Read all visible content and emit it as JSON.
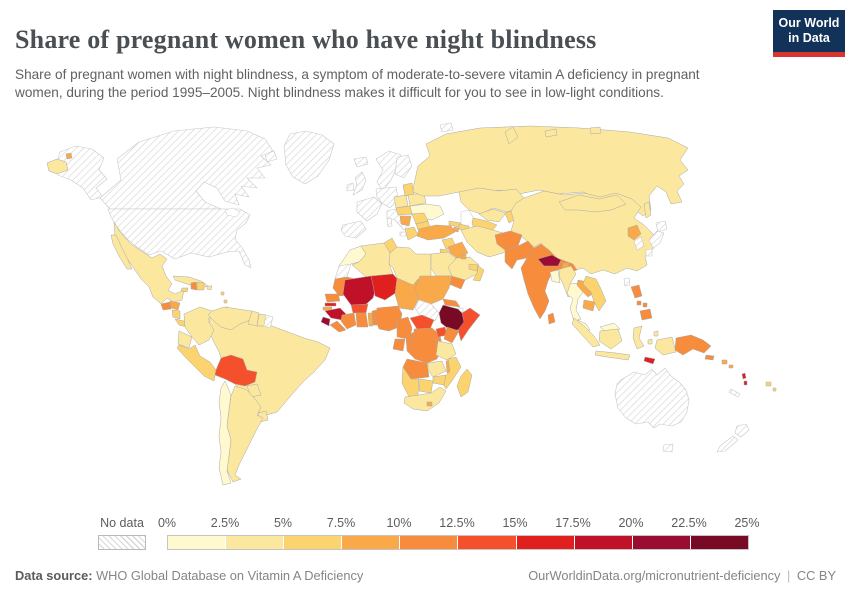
{
  "header": {
    "title": "Share of pregnant women who have night blindness",
    "subtitle": "Share of pregnant women with night blindness, a symptom of moderate-to-severe vitamin A deficiency in pregnant women, during the period 1995–2005. Night blindness makes it difficult for you to see in low-light conditions."
  },
  "logo": {
    "line1": "Our World",
    "line2": "in Data",
    "bg": "#12325a",
    "accent": "#d8352e"
  },
  "legend": {
    "no_data_label": "No data",
    "ticks": [
      "0%",
      "2.5%",
      "5%",
      "7.5%",
      "10%",
      "12.5%",
      "15%",
      "17.5%",
      "20%",
      "22.5%",
      "25%"
    ]
  },
  "palette": {
    "bins": [
      "#FEF9CE",
      "#FBE79E",
      "#FBD470",
      "#F9A94A",
      "#F78C3C",
      "#F3502B",
      "#E01F1F",
      "#C11129",
      "#9A0C31",
      "#780A26"
    ],
    "no_data": "hatch"
  },
  "footer": {
    "source_label": "Data source:",
    "source": "WHO Global Database on Vitamin A Deficiency",
    "right_link": "OurWorldinData.org/micronutrient-deficiency",
    "separator": "|",
    "license": "CC BY"
  },
  "chart_data": {
    "type": "heatmap",
    "title": "Share of pregnant women who have night blindness",
    "unit": "%",
    "period": "1995–2005",
    "legend_bins": [
      {
        "range": "0–2.5%",
        "color": "#FEF9CE"
      },
      {
        "range": "2.5–5%",
        "color": "#FBE79E"
      },
      {
        "range": "5–7.5%",
        "color": "#FBD470"
      },
      {
        "range": "7.5–10%",
        "color": "#F9A94A"
      },
      {
        "range": "10–12.5%",
        "color": "#F78C3C"
      },
      {
        "range": "12.5–15%",
        "color": "#F3502B"
      },
      {
        "range": "15–17.5%",
        "color": "#E01F1F"
      },
      {
        "range": "17.5–20%",
        "color": "#C11129"
      },
      {
        "range": "20–22.5%",
        "color": "#9A0C31"
      },
      {
        "range": "22.5–25%",
        "color": "#780A26"
      }
    ],
    "no_data_regions": [
      "United States",
      "Canada",
      "Greenland",
      "Iceland",
      "United Kingdom",
      "Ireland",
      "Scandinavia",
      "Finland",
      "Denmark",
      "France",
      "Spain",
      "Portugal",
      "Germany",
      "Italy",
      "Japan",
      "South Korea",
      "Taiwan",
      "Australia",
      "New Zealand",
      "New Caledonia",
      "Western Sahara",
      "South Sudan",
      "Djibouti",
      "French Guiana"
    ],
    "countries_by_bin": {
      "0–2.5%": [
        "Ukraine",
        "Morocco",
        "Bangladesh",
        "Thailand",
        "Malaysia",
        "Chile"
      ],
      "2.5–5%": [
        "Russia",
        "China",
        "Mongolia",
        "Kazakhstan",
        "Uzbekistan",
        "Iran",
        "Saudi Arabia",
        "Egypt",
        "Libya",
        "Algeria",
        "Mexico",
        "Cuba",
        "Brazil",
        "Colombia",
        "Venezuela",
        "Guyana",
        "Suriname",
        "Ecuador",
        "Paraguay",
        "Uruguay",
        "Argentina",
        "Tanzania",
        "Zambia",
        "South Africa",
        "Poland",
        "Belarus",
        "Myanmar",
        "Indonesia"
      ],
      "5–7.5%": [
        "Peru",
        "Greece",
        "Baltic states",
        "Romania",
        "Hungary",
        "Bulgaria",
        "Georgia",
        "Azerbaijan",
        "Turkmenistan",
        "Kyrgyzstan",
        "Syria",
        "Jordan",
        "Oman",
        "UAE",
        "Tunisia",
        "Mozambique",
        "Zimbabwe",
        "Botswana",
        "Namibia",
        "Madagascar",
        "Vietnam",
        "Nicaragua",
        "Costa Rica",
        "Panama",
        "Jamaica",
        "Dominican Republic",
        "Fiji"
      ],
      "7.5–10%": [
        "Turkey",
        "Iraq",
        "Armenia",
        "Balkans",
        "Chad",
        "Sudan",
        "Togo",
        "Malawi",
        "Lesotho",
        "North Korea",
        "Laos",
        "Cambodia",
        "Bhutan",
        "Honduras",
        "Solomon Islands"
      ],
      "10–12.5%": [
        "India",
        "Pakistan",
        "Afghanistan",
        "Yemen",
        "Mauritania",
        "Senegal",
        "Liberia",
        "Côte d'Ivoire",
        "Ghana",
        "Benin",
        "Nigeria",
        "Cameroon",
        "Gabon",
        "Congo",
        "DR Congo",
        "Kenya",
        "Eritrea",
        "Angola",
        "Sri Lanka",
        "Philippines",
        "Papua New Guinea",
        "Guatemala",
        "Haiti"
      ],
      "12.5–15%": [
        "Bolivia",
        "Burkina Faso",
        "Central African Republic",
        "Uganda",
        "Somalia"
      ],
      "15–17.5%": [
        "Niger",
        "Gambia",
        "Timor-Leste",
        "Vanuatu"
      ],
      "17.5–20%": [
        "Mali",
        "Guinea"
      ],
      "20–22.5%": [
        "Sierra Leone",
        "Nepal"
      ],
      "22.5–25%": [
        "Ethiopia"
      ]
    }
  },
  "map": {
    "regions": {
      "greenland": "nd",
      "arctic-canada": "nd",
      "alaska": "nd",
      "canada": "nd",
      "usa": "nd",
      "chukotka": 2,
      "chukotka-dot": 4,
      "mexico": 2,
      "baja": 2,
      "guatemala": 5,
      "honduras": 4,
      "nicaragua": 3,
      "costa-panama": 3,
      "cuba": 2,
      "jamaica": 3,
      "haiti": 5,
      "dom-rep": 3,
      "puerto-rico": 2,
      "lesser-antilles": 3,
      "trinidad": 5,
      "brazil": 2,
      "colombia": 2,
      "venezuela": 2,
      "guyana": 2,
      "suriname": 2,
      "french-guiana": "nd",
      "ecuador": 2,
      "peru": 3,
      "bolivia": 6,
      "paraguay": 2,
      "uruguay": 2,
      "argentina": 2,
      "chile": 1,
      "iceland": "nd",
      "uk": "nd",
      "ireland": "nd",
      "scandinavia": "nd",
      "finland": "nd",
      "denmark": "nd",
      "iberia": "nd",
      "france": "nd",
      "central-europe": "nd",
      "italy": "nd",
      "sicily": "nd",
      "sardinia": "nd",
      "greece": 3,
      "poland": 2,
      "baltics": 3,
      "belarus": 2,
      "ukraine": 1,
      "romania": 3,
      "hungary-czech": 3,
      "balkans": 4,
      "bulgaria": 3,
      "russia": 2,
      "novaya": 2,
      "arctic-islands-ru": 2,
      "svalbard": "nd",
      "sakhalin": 2,
      "kazakhstan": 2,
      "uzbekistan": 2,
      "turkmenistan": 3,
      "kyrgyz-tajik": 3,
      "georgia": 3,
      "azerbaijan": 3,
      "armenia": 4,
      "turkey": 4,
      "syria": 3,
      "iraq": 4,
      "israel-jordan": 3,
      "saudi": 2,
      "kuwait": 4,
      "qatar-uae": 3,
      "oman": 3,
      "yemen": 5,
      "iran": 2,
      "afghanistan": 5,
      "pakistan": 5,
      "india": 5,
      "nepal": 9,
      "bhutan": 4,
      "bangladesh": 1,
      "sri-lanka": 5,
      "myanmar": 2,
      "thailand": 1,
      "laos": 4,
      "vietnam": 3,
      "cambodia": 4,
      "china": 2,
      "mongolia": 2,
      "north-korea": 4,
      "south-korea": "nd",
      "japan-hokkaido": "nd",
      "japan-honshu": "nd",
      "japan-kyushu": "nd",
      "taiwan": "nd",
      "philippines-luzon": 5,
      "philippines-visayas": 5,
      "philippines-mindanao": 5,
      "malaysia": 1,
      "borneo-malaysia": 1,
      "sumatra": 2,
      "kalimantan": 2,
      "java": 2,
      "sulawesi": 2,
      "moluccas": 2,
      "west-papua": 2,
      "timor": 7,
      "png": 5,
      "new-britain": 5,
      "solomon": 4,
      "vanuatu": 7,
      "fiji": 3,
      "new-caledonia": "nd",
      "australia": "nd",
      "tasmania": "nd",
      "new-zealand": "nd",
      "morocco": 1,
      "western-sahara": "nd",
      "algeria": 2,
      "tunisia": 3,
      "libya": 2,
      "egypt": 2,
      "mauritania": 5,
      "mali": 8,
      "niger": 7,
      "chad": 4,
      "sudan": 4,
      "eritrea": 5,
      "djibouti": "nd",
      "ethiopia": 10,
      "somalia": 6,
      "south-sudan": "nd",
      "senegal": 5,
      "gambia": 7,
      "guinea-bissau": 4,
      "guinea": 8,
      "sierra-leone": 9,
      "liberia": 5,
      "cote-divoire": 5,
      "burkina": 6,
      "ghana": 5,
      "togo": 4,
      "benin": 5,
      "nigeria": 5,
      "cameroon": 5,
      "car": 6,
      "gabon": 5,
      "congo": 5,
      "drc": 5,
      "uganda": 6,
      "kenya": 5,
      "rwanda-burundi": 5,
      "tanzania": 2,
      "angola": 5,
      "zambia": 2,
      "malawi": 4,
      "mozambique": 3,
      "zimbabwe": 3,
      "botswana": 3,
      "namibia": 3,
      "south-africa": 2,
      "lesotho": 4,
      "madagascar": 3
    }
  }
}
